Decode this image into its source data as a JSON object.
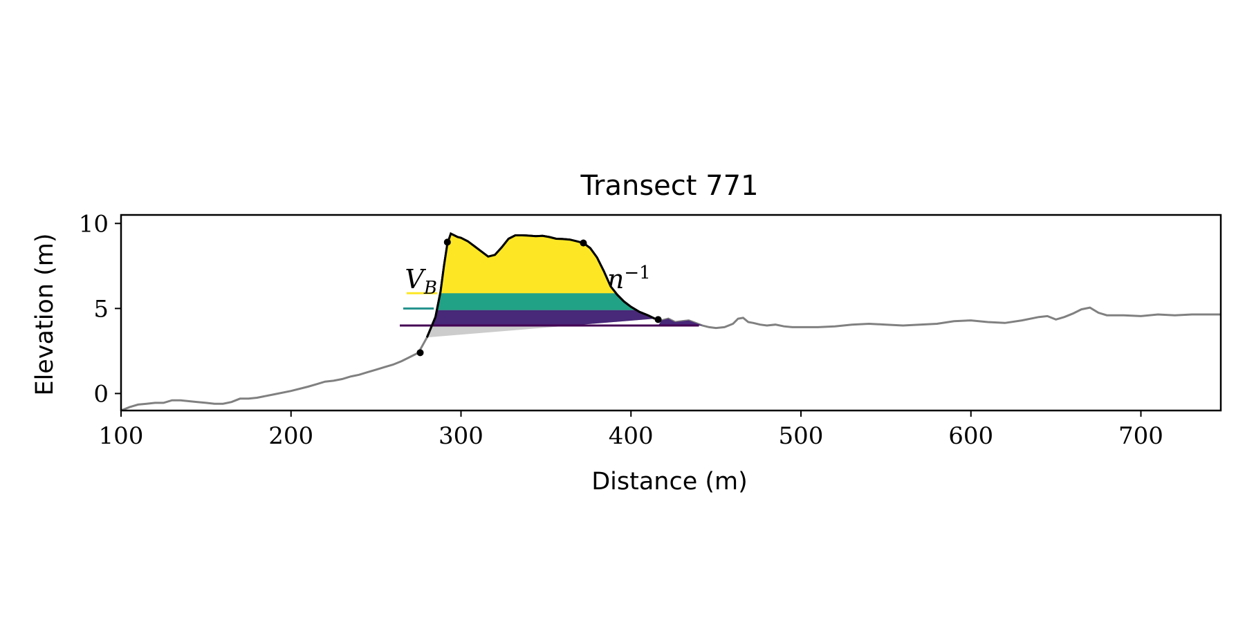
{
  "chart_data": {
    "type": "line",
    "title": "Transect 771",
    "xlabel": "Distance (m)",
    "ylabel": "Elevation (m)",
    "xlim": [
      100,
      747
    ],
    "ylim": [
      -1,
      10.5
    ],
    "xticks": [
      100,
      200,
      300,
      400,
      500,
      600,
      700
    ],
    "yticks": [
      0,
      5,
      10
    ],
    "grid": false,
    "colors": {
      "profile": "#808080",
      "dune_outline": "#000000",
      "base_fill": "#cccccc",
      "band_top": "#fde725",
      "band_middle": "#21a185",
      "band_bottom": "#482878",
      "level_top": "#fde725",
      "level_middle": "#21918c",
      "level_bottom": "#440154"
    },
    "profile": {
      "x": [
        100,
        105,
        110,
        115,
        120,
        125,
        130,
        135,
        140,
        145,
        150,
        155,
        160,
        165,
        170,
        175,
        180,
        190,
        200,
        210,
        215,
        220,
        225,
        230,
        235,
        240,
        245,
        250,
        255,
        260,
        265,
        270,
        275,
        280,
        285,
        288,
        290,
        292,
        294,
        296,
        298,
        300,
        304,
        308,
        312,
        316,
        320,
        324,
        328,
        332,
        336,
        340,
        344,
        348,
        352,
        356,
        360,
        364,
        368,
        372,
        376,
        380,
        384,
        388,
        392,
        396,
        400,
        405,
        410,
        414,
        418,
        422,
        426,
        430,
        434,
        438,
        442,
        446,
        450,
        455,
        460,
        463,
        466,
        469,
        472,
        476,
        480,
        485,
        490,
        495,
        500,
        510,
        520,
        530,
        540,
        550,
        560,
        570,
        580,
        590,
        600,
        610,
        620,
        630,
        640,
        645,
        650,
        655,
        660,
        665,
        670,
        675,
        680,
        690,
        700,
        710,
        720,
        730,
        747
      ],
      "y": [
        -1.0,
        -0.8,
        -0.65,
        -0.6,
        -0.55,
        -0.55,
        -0.4,
        -0.4,
        -0.45,
        -0.5,
        -0.55,
        -0.6,
        -0.6,
        -0.5,
        -0.3,
        -0.3,
        -0.25,
        -0.05,
        0.15,
        0.4,
        0.55,
        0.7,
        0.75,
        0.85,
        1.0,
        1.1,
        1.25,
        1.4,
        1.55,
        1.7,
        1.9,
        2.15,
        2.4,
        3.3,
        4.5,
        6.0,
        7.5,
        8.8,
        9.4,
        9.3,
        9.2,
        9.15,
        8.95,
        8.65,
        8.35,
        8.05,
        8.15,
        8.6,
        9.1,
        9.3,
        9.3,
        9.28,
        9.25,
        9.27,
        9.2,
        9.1,
        9.08,
        9.05,
        8.95,
        8.85,
        8.55,
        8.0,
        7.2,
        6.3,
        5.8,
        5.4,
        5.1,
        4.8,
        4.6,
        4.4,
        4.3,
        4.4,
        4.2,
        4.25,
        4.3,
        4.15,
        4.0,
        3.9,
        3.85,
        3.9,
        4.1,
        4.4,
        4.45,
        4.2,
        4.15,
        4.05,
        4.0,
        4.05,
        3.95,
        3.9,
        3.9,
        3.9,
        3.95,
        4.05,
        4.1,
        4.05,
        4.0,
        4.05,
        4.1,
        4.25,
        4.3,
        4.2,
        4.15,
        4.3,
        4.5,
        4.55,
        4.35,
        4.5,
        4.7,
        4.95,
        5.05,
        4.75,
        4.6,
        4.6,
        4.55,
        4.65,
        4.6,
        4.65,
        4.65
      ]
    },
    "dune": {
      "toe": [
        276,
        2.4
      ],
      "crest_seaward": [
        292,
        8.9
      ],
      "crest_landward": [
        372,
        8.85
      ],
      "heel": [
        416,
        4.35
      ],
      "base_line": [
        [
          276,
          2.4
        ],
        [
          416,
          4.35
        ]
      ]
    },
    "bands": [
      {
        "bottom": 5.9,
        "top": 10.5,
        "color_key": "band_top"
      },
      {
        "bottom": 4.9,
        "top": 5.9,
        "color_key": "band_middle"
      },
      {
        "bottom": 4.0,
        "top": 4.9,
        "color_key": "band_bottom"
      }
    ],
    "levels": [
      {
        "y": 5.9,
        "x_start": 268,
        "color_key": "level_top"
      },
      {
        "y": 5.0,
        "x_start": 266,
        "color_key": "level_middle"
      },
      {
        "y": 4.0,
        "x_start": 264,
        "color_key": "level_bottom"
      }
    ],
    "annotations": [
      {
        "text": "V",
        "sub": "B",
        "x": 267,
        "y": 6.2
      },
      {
        "text": "n",
        "sup": "−1",
        "x": 386,
        "y": 6.2
      }
    ]
  }
}
